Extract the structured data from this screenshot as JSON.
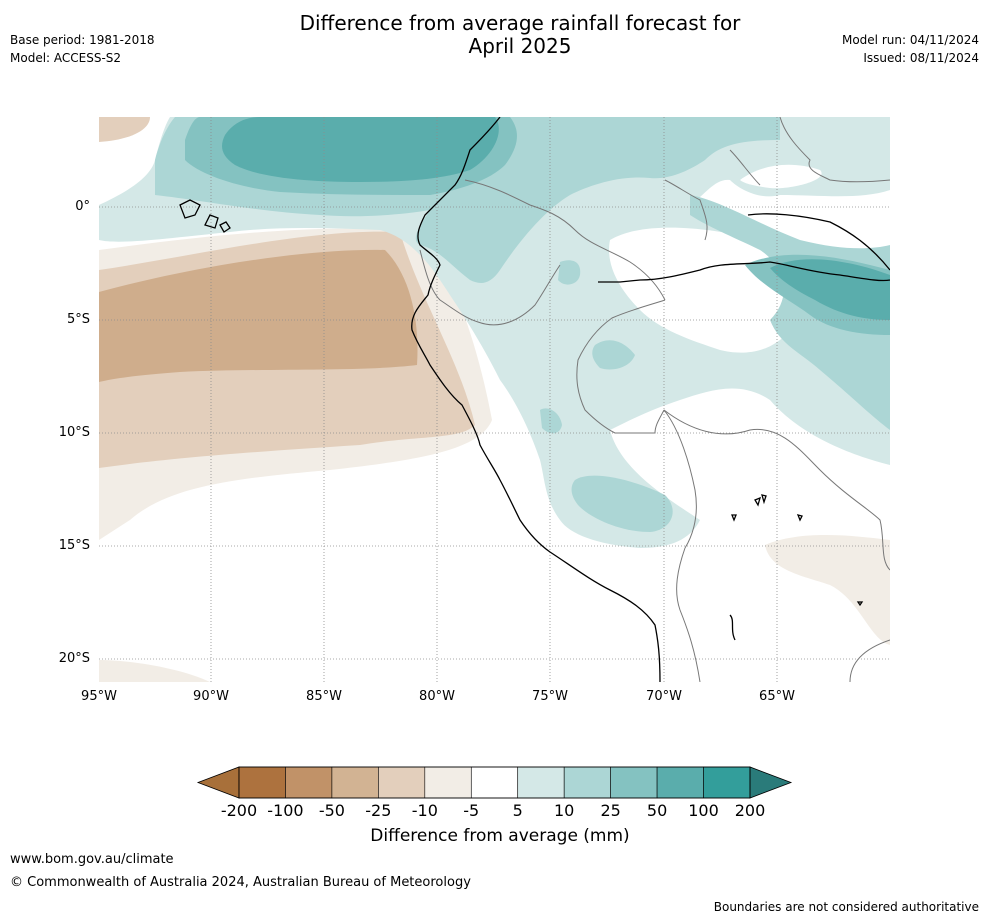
{
  "header": {
    "title_line1": "Difference from average rainfall forecast for",
    "title_line2": "April 2025",
    "base_period": "Base period: 1981-2018",
    "model": "Model: ACCESS-S2",
    "model_run": "Model run: 04/11/2024",
    "issued": "Issued: 08/11/2024"
  },
  "map": {
    "lat_labels": [
      "0°",
      "5°S",
      "10°S",
      "15°S",
      "20°S"
    ],
    "lon_labels": [
      "95°W",
      "90°W",
      "85°W",
      "80°W",
      "75°W",
      "70°W",
      "65°W"
    ],
    "colors": {
      "dry3": "#cfad8c",
      "dry2": "#e3cfbc",
      "dry1": "#f2ede6",
      "wet1": "#d4e8e7",
      "wet2": "#acd6d5",
      "wet3": "#84c2c1",
      "wet4": "#5aadac",
      "coast": "#000000",
      "border": "#777777",
      "grid": "#8c8c8c"
    }
  },
  "colorbar": {
    "labels": [
      "-200",
      "-100",
      "-50",
      "-25",
      "-10",
      "-5",
      "5",
      "10",
      "25",
      "50",
      "100",
      "200"
    ],
    "colors": [
      "#a8703a",
      "#ad723e",
      "#c19268",
      "#d2b393",
      "#e3cfbc",
      "#f2ede6",
      "#ffffff",
      "#d4e8e7",
      "#acd6d5",
      "#84c2c1",
      "#5aadac",
      "#339e9b",
      "#2a7b7a"
    ],
    "title": "Difference from average (mm)"
  },
  "footer": {
    "website": "www.bom.gov.au/climate",
    "copyright": "© Commonwealth of Australia 2024, Australian Bureau of Meteorology",
    "disclaimer": "Boundaries are not considered authoritative"
  }
}
